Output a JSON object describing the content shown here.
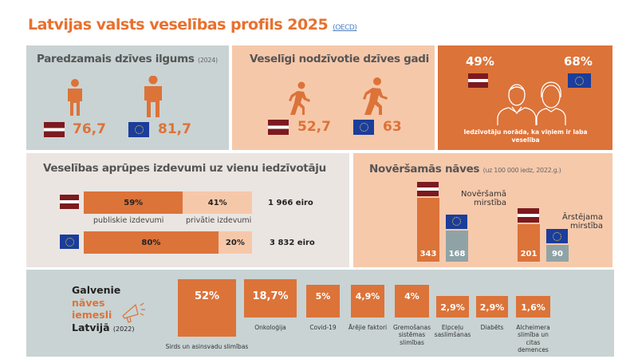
{
  "title": "Latvijas valsts veselības profils 2025",
  "source": "(OECD)",
  "life_expectancy": {
    "title": "Paredzamais dzīves ilgums",
    "year": "(2024)",
    "lv": "76,7",
    "eu": "81,7"
  },
  "healthy_years": {
    "title": "Veselīgi nodzīvotie dzīves gadi",
    "lv": "52,7",
    "eu": "63"
  },
  "good_health": {
    "lv": "49%",
    "eu": "68%",
    "caption": "Iedzīvotāju norāda, ka viņiem ir laba veselība"
  },
  "spending": {
    "title": "Veselības aprūpes izdevumi uz vienu iedzīvotāju",
    "lv": {
      "public": 59,
      "public_label": "59%",
      "private_label": "41%",
      "total": "1 966 eiro"
    },
    "eu": {
      "public": 80,
      "public_label": "80%",
      "private_label": "20%",
      "total": "3 832 eiro"
    },
    "public_caption": "publiskie izdevumi",
    "private_caption": "privātie izdevumi"
  },
  "avoidable": {
    "title": "Novēršamās nāves",
    "note": "(uz 100 000 iedz, 2022.g.)",
    "groups": [
      {
        "label_1": "Novēršamā",
        "label_2": "mirstība",
        "lv": 343,
        "eu": 168
      },
      {
        "label_1": "Ārstējama",
        "label_2": "mirstība",
        "lv": 201,
        "eu": 90
      }
    ]
  },
  "causes": {
    "title_1": "Galvenie",
    "title_2": "nāves",
    "title_3": "iemesli",
    "title_4": "Latvijā",
    "year": "(2022)",
    "items": [
      {
        "value": "52%",
        "label": "Sirds un asinsvadu slimības"
      },
      {
        "value": "18,7%",
        "label": "Onkoloģija"
      },
      {
        "value": "5%",
        "label": "Covid-19"
      },
      {
        "value": "4,9%",
        "label": "Ārējie faktori"
      },
      {
        "value": "4%",
        "label": "Gremošanas sistēmas slimības"
      },
      {
        "value": "2,9%",
        "label": "Elpceļu saslimšanas"
      },
      {
        "value": "2,9%",
        "label": "Diabēts"
      },
      {
        "value": "1,6%",
        "label": "Alcheimera slimība un citas demences"
      }
    ]
  },
  "colors": {
    "orange": "#dc7339",
    "peach": "#f6c8aa",
    "grey": "#c9d3d3",
    "beige": "#ebe5e1",
    "eu_grey": "#8fa3a6"
  }
}
